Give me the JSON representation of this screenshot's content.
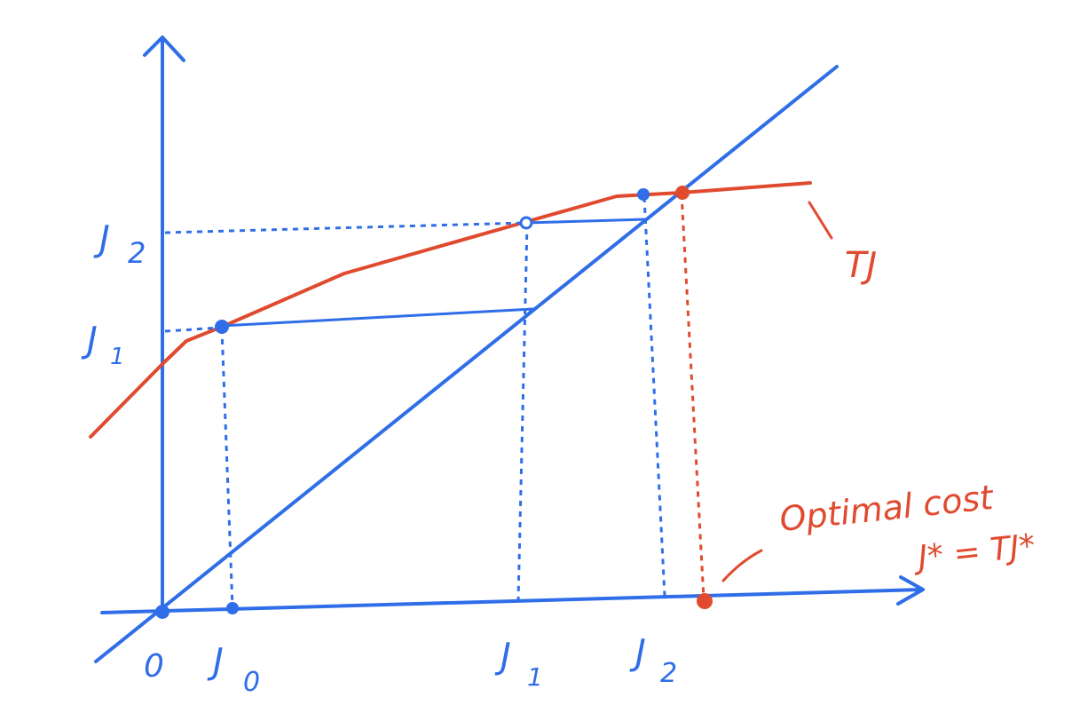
{
  "colors": {
    "blue": "#2f6ee8",
    "red": "#e04a2f"
  },
  "labels": {
    "origin": "0",
    "x_j0": "J",
    "x_j0_sub": "0",
    "x_j1": "J",
    "x_j1_sub": "1",
    "x_j2": "J",
    "x_j2_sub": "2",
    "y_j1": "J",
    "y_j1_sub": "1",
    "y_j2": "J",
    "y_j2_sub": "2",
    "curve_label": "TJ",
    "annotation_line1": "Optimal cost",
    "annotation_line2": "J* = TJ*"
  }
}
